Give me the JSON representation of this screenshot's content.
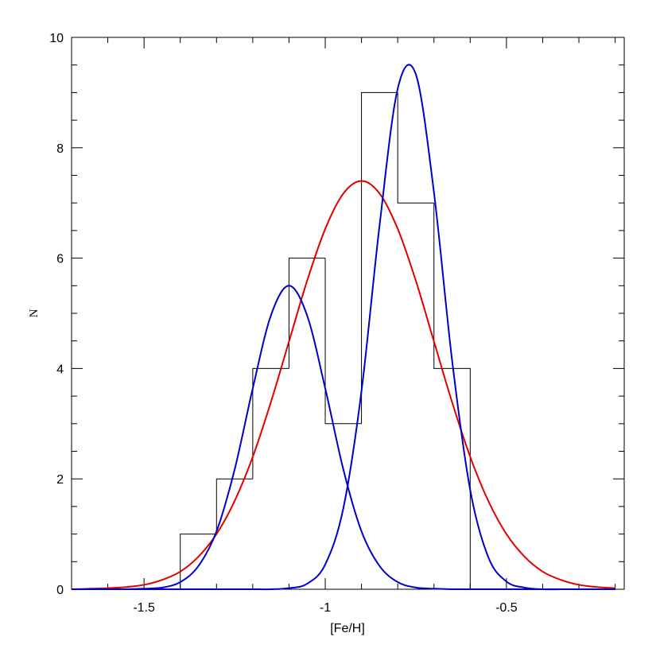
{
  "chart_data": {
    "type": "histogram",
    "xlabel": "[Fe/H]",
    "ylabel": "N",
    "bins": [
      -1.4,
      -1.3,
      -1.2,
      -1.1,
      -1.0,
      -0.9,
      -0.8,
      -0.7,
      -0.6
    ],
    "counts": [
      1,
      2,
      4,
      6,
      3,
      9,
      7,
      4
    ],
    "color": "#000000",
    "xlim": [
      -1.7,
      -0.175
    ],
    "ylim": [
      0,
      10
    ],
    "xticks": [
      -1.5,
      -1,
      -0.5
    ],
    "yticks": [
      0,
      2,
      4,
      6,
      8,
      10
    ],
    "xminor_ticks": [
      -1.6,
      -1.4,
      -1.3,
      -1.2,
      -1.1,
      -0.9,
      -0.8,
      -0.7,
      -0.6,
      -0.4,
      -0.3,
      -0.2
    ],
    "yminor_ticks": [
      0.5,
      1,
      1.5,
      2.5,
      3,
      3.5,
      4.5,
      5,
      5.5,
      6.5,
      7,
      7.5,
      8.5,
      9,
      9.5
    ],
    "curves": {
      "x": [
        -1.7,
        -1.65,
        -1.6,
        -1.55,
        -1.5,
        -1.45,
        -1.4,
        -1.35,
        -1.3,
        -1.25,
        -1.2,
        -1.15,
        -1.1,
        -1.05,
        -1.0,
        -0.95,
        -0.9,
        -0.85,
        -0.8,
        -0.75,
        -0.7,
        -0.65,
        -0.6,
        -0.55,
        -0.5,
        -0.45,
        -0.4,
        -0.35,
        -0.3,
        -0.25,
        -0.2
      ],
      "series": [
        {
          "color": "#e00000",
          "values": [
            0,
            0.01,
            0.02,
            0.04,
            0.08,
            0.17,
            0.32,
            0.59,
            1.0,
            1.6,
            2.4,
            3.39,
            4.49,
            5.59,
            6.53,
            7.17,
            7.4,
            7.17,
            6.53,
            5.59,
            4.49,
            3.39,
            2.4,
            1.6,
            1.0,
            0.59,
            0.32,
            0.17,
            0.08,
            0.04,
            0.02
          ]
        },
        {
          "color": "#0000cc",
          "values": [
            0,
            0,
            0,
            0,
            0.01,
            0.03,
            0.13,
            0.42,
            1.05,
            2.17,
            3.64,
            4.96,
            5.5,
            4.96,
            3.64,
            2.17,
            1.05,
            0.42,
            0.13,
            0.03,
            0.01,
            0,
            0,
            0,
            0,
            0,
            0,
            0,
            0,
            0,
            0
          ]
        },
        {
          "color": "#0000cc",
          "values": [
            0,
            0,
            0,
            0,
            0,
            0,
            0,
            0,
            0,
            0,
            0,
            0,
            0.02,
            0.1,
            0.45,
            1.47,
            3.59,
            6.6,
            9.07,
            9.33,
            7.19,
            4.15,
            1.8,
            0.58,
            0.14,
            0.03,
            0,
            0,
            0,
            0,
            0
          ]
        }
      ]
    }
  }
}
